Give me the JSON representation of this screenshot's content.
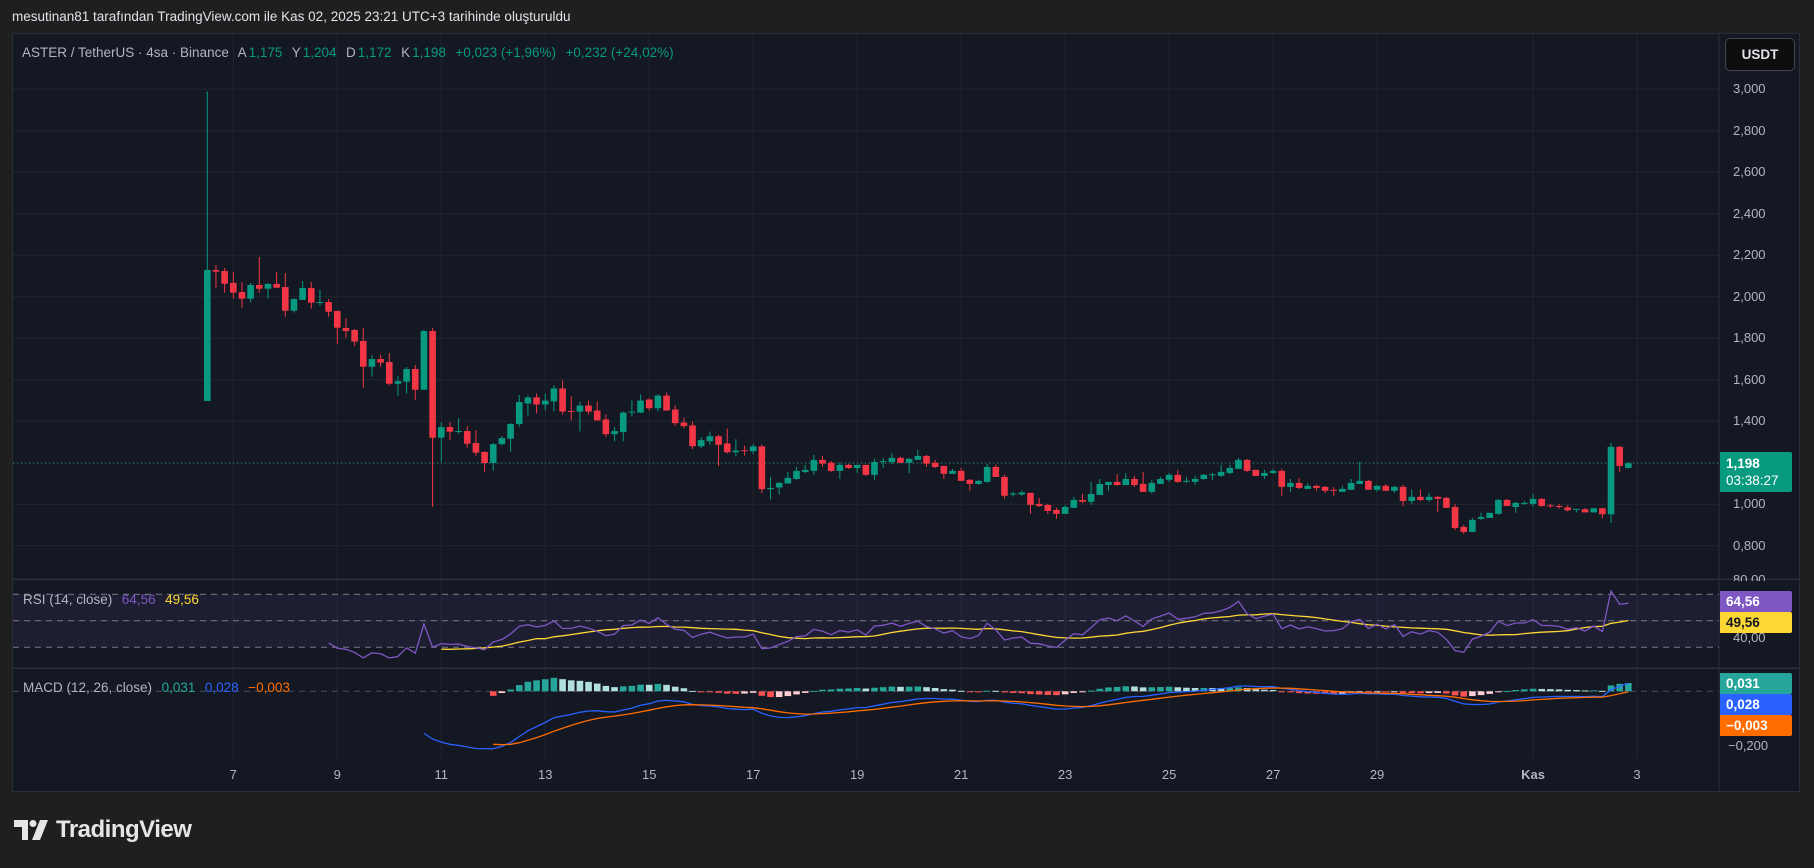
{
  "snapshot_caption": "mesutinan81 tarafından TradingView.com ile Kas 02, 2025 23:21 UTC+3 tarihinde oluşturuldu",
  "header": {
    "symbol": "ASTER / TetherUS · 4sa · Binance",
    "open_label": "A",
    "open": "1,175",
    "high_label": "Y",
    "high": "1,204",
    "low_label": "D",
    "low": "1,172",
    "close_label": "K",
    "close": "1,198",
    "change": "+0,023 (+1,96%)",
    "change_total": "+0,232 (+24,02%)"
  },
  "currency_button": "USDT",
  "price_axis": {
    "labels": [
      "3,000",
      "2,800",
      "2,600",
      "2,400",
      "2,200",
      "2,000",
      "1,800",
      "1,600",
      "1,400",
      "1,000",
      "0,800"
    ],
    "current_price": "1,198",
    "countdown": "03:38:27"
  },
  "rsi": {
    "title": "RSI (14, close)",
    "value": "64,56",
    "ma_value": "49,56",
    "axis_labels": [
      "80,00",
      "40,00"
    ]
  },
  "macd": {
    "title": "MACD (12, 26, close)",
    "histogram": "0,031",
    "macd": "0,028",
    "signal": "−0,003",
    "axis_labels": [
      "−0,200"
    ]
  },
  "time_axis": {
    "labels": [
      "7",
      "9",
      "11",
      "13",
      "15",
      "17",
      "19",
      "21",
      "23",
      "25",
      "27",
      "29",
      "Kas",
      "3"
    ]
  },
  "branding": {
    "logo_text": "TradingView"
  },
  "colors": {
    "up": "#089981",
    "down": "#f23645",
    "rsi": "#7e57c2",
    "rsi_ma": "#fdd835",
    "macd": "#2962ff",
    "signal": "#ff6d00",
    "hist_up": "#26a69a",
    "hist_down": "#ff5252"
  },
  "chart_data": {
    "type": "candlestick",
    "interval": "4sa",
    "ylim": [
      0.8,
      3.0
    ],
    "ohlc_columns": [
      "open",
      "high",
      "low",
      "close"
    ],
    "ohlc_scale_note": "values in thousandths of USDT",
    "candles": [
      [
        1498,
        2990,
        1498,
        2129
      ],
      [
        2129,
        2153,
        2044,
        2121
      ],
      [
        2124,
        2139,
        2020,
        2063
      ],
      [
        2067,
        2120,
        1991,
        2020
      ],
      [
        2023,
        2071,
        1948,
        1991
      ],
      [
        1991,
        2067,
        1972,
        2057
      ],
      [
        2057,
        2192,
        2020,
        2039
      ],
      [
        2039,
        2067,
        1991,
        2062
      ],
      [
        2062,
        2120,
        2044,
        2044
      ],
      [
        2047,
        2115,
        1904,
        1933
      ],
      [
        1933,
        1994,
        1924,
        1989
      ],
      [
        1985,
        2076,
        1985,
        2042
      ],
      [
        2042,
        2071,
        1943,
        1972
      ],
      [
        1972,
        2033,
        1957,
        1975
      ],
      [
        1975,
        1990,
        1904,
        1928
      ],
      [
        1932,
        1932,
        1774,
        1851
      ],
      [
        1850,
        1898,
        1803,
        1835
      ],
      [
        1840,
        1845,
        1763,
        1784
      ],
      [
        1787,
        1850,
        1562,
        1663
      ],
      [
        1663,
        1720,
        1615,
        1700
      ],
      [
        1700,
        1720,
        1663,
        1683
      ],
      [
        1686,
        1729,
        1572,
        1581
      ],
      [
        1581,
        1618,
        1523,
        1594
      ],
      [
        1591,
        1662,
        1533,
        1652
      ],
      [
        1652,
        1671,
        1504,
        1552
      ],
      [
        1552,
        1840,
        1552,
        1835
      ],
      [
        1835,
        1850,
        988,
        1321
      ],
      [
        1321,
        1396,
        1205,
        1372
      ],
      [
        1372,
        1396,
        1311,
        1350
      ],
      [
        1350,
        1416,
        1340,
        1353
      ],
      [
        1353,
        1377,
        1273,
        1292
      ],
      [
        1295,
        1358,
        1234,
        1249
      ],
      [
        1252,
        1257,
        1157,
        1199
      ],
      [
        1199,
        1295,
        1162,
        1290
      ],
      [
        1290,
        1329,
        1284,
        1319
      ],
      [
        1316,
        1392,
        1253,
        1387
      ],
      [
        1387,
        1527,
        1374,
        1493
      ],
      [
        1486,
        1524,
        1428,
        1515
      ],
      [
        1515,
        1534,
        1438,
        1481
      ],
      [
        1481,
        1534,
        1452,
        1500
      ],
      [
        1496,
        1573,
        1448,
        1558
      ],
      [
        1558,
        1597,
        1433,
        1447
      ],
      [
        1450,
        1520,
        1404,
        1448
      ],
      [
        1447,
        1496,
        1351,
        1476
      ],
      [
        1476,
        1500,
        1433,
        1447
      ],
      [
        1452,
        1496,
        1404,
        1404
      ],
      [
        1409,
        1433,
        1324,
        1338
      ],
      [
        1338,
        1372,
        1304,
        1353
      ],
      [
        1348,
        1447,
        1304,
        1442
      ],
      [
        1445,
        1500,
        1423,
        1447
      ],
      [
        1442,
        1529,
        1439,
        1500
      ],
      [
        1505,
        1510,
        1452,
        1463
      ],
      [
        1463,
        1529,
        1447,
        1524
      ],
      [
        1524,
        1539,
        1452,
        1452
      ],
      [
        1457,
        1476,
        1377,
        1391
      ],
      [
        1394,
        1418,
        1367,
        1377
      ],
      [
        1380,
        1399,
        1266,
        1280
      ],
      [
        1280,
        1324,
        1270,
        1309
      ],
      [
        1304,
        1351,
        1287,
        1328
      ],
      [
        1328,
        1336,
        1184,
        1287
      ],
      [
        1293,
        1365,
        1245,
        1251
      ],
      [
        1251,
        1314,
        1232,
        1259
      ],
      [
        1261,
        1283,
        1235,
        1259
      ],
      [
        1256,
        1290,
        1243,
        1279
      ],
      [
        1279,
        1288,
        1054,
        1073
      ],
      [
        1073,
        1132,
        1023,
        1079
      ],
      [
        1081,
        1108,
        1047,
        1103
      ],
      [
        1100,
        1156,
        1100,
        1127
      ],
      [
        1122,
        1180,
        1118,
        1161
      ],
      [
        1156,
        1190,
        1151,
        1166
      ],
      [
        1161,
        1238,
        1142,
        1214
      ],
      [
        1214,
        1233,
        1180,
        1196
      ],
      [
        1200,
        1209,
        1156,
        1161
      ],
      [
        1161,
        1200,
        1122,
        1190
      ],
      [
        1190,
        1195,
        1171,
        1175
      ],
      [
        1175,
        1190,
        1151,
        1190
      ],
      [
        1190,
        1190,
        1137,
        1142
      ],
      [
        1142,
        1219,
        1118,
        1204
      ],
      [
        1206,
        1224,
        1175,
        1209
      ],
      [
        1204,
        1248,
        1195,
        1224
      ],
      [
        1224,
        1229,
        1200,
        1200
      ],
      [
        1200,
        1224,
        1151,
        1219
      ],
      [
        1214,
        1262,
        1214,
        1233
      ],
      [
        1233,
        1238,
        1180,
        1196
      ],
      [
        1200,
        1214,
        1175,
        1180
      ],
      [
        1185,
        1185,
        1122,
        1147
      ],
      [
        1147,
        1171,
        1147,
        1161
      ],
      [
        1161,
        1175,
        1113,
        1113
      ],
      [
        1118,
        1122,
        1065,
        1098
      ],
      [
        1098,
        1118,
        1094,
        1113
      ],
      [
        1108,
        1195,
        1103,
        1180
      ],
      [
        1180,
        1190,
        1132,
        1132
      ],
      [
        1132,
        1142,
        1027,
        1041
      ],
      [
        1047,
        1061,
        1037,
        1052
      ],
      [
        1047,
        1066,
        1042,
        1057
      ],
      [
        1055,
        1055,
        954,
        997
      ],
      [
        1002,
        1031,
        987,
        992
      ],
      [
        997,
        1002,
        954,
        968
      ],
      [
        973,
        983,
        930,
        954
      ],
      [
        954,
        997,
        954,
        987
      ],
      [
        983,
        1036,
        983,
        1021
      ],
      [
        1021,
        1050,
        1007,
        1012
      ],
      [
        1012,
        1108,
        997,
        1050
      ],
      [
        1045,
        1122,
        1045,
        1098
      ],
      [
        1093,
        1108,
        1065,
        1108
      ],
      [
        1108,
        1146,
        1088,
        1093
      ],
      [
        1093,
        1151,
        1093,
        1122
      ],
      [
        1122,
        1137,
        1084,
        1093
      ],
      [
        1098,
        1156,
        1060,
        1060
      ],
      [
        1060,
        1118,
        1052,
        1103
      ],
      [
        1098,
        1132,
        1098,
        1122
      ],
      [
        1118,
        1151,
        1108,
        1142
      ],
      [
        1142,
        1166,
        1103,
        1108
      ],
      [
        1108,
        1132,
        1103,
        1113
      ],
      [
        1108,
        1137,
        1093,
        1122
      ],
      [
        1122,
        1146,
        1118,
        1142
      ],
      [
        1142,
        1151,
        1118,
        1145
      ],
      [
        1137,
        1190,
        1132,
        1156
      ],
      [
        1151,
        1190,
        1146,
        1175
      ],
      [
        1171,
        1224,
        1171,
        1214
      ],
      [
        1214,
        1219,
        1156,
        1161
      ],
      [
        1166,
        1166,
        1137,
        1137
      ],
      [
        1137,
        1166,
        1122,
        1151
      ],
      [
        1151,
        1171,
        1146,
        1161
      ],
      [
        1161,
        1171,
        1041,
        1084
      ],
      [
        1084,
        1122,
        1060,
        1103
      ],
      [
        1103,
        1127,
        1074,
        1079
      ],
      [
        1074,
        1103,
        1074,
        1089
      ],
      [
        1089,
        1094,
        1065,
        1079
      ],
      [
        1084,
        1089,
        1055,
        1065
      ],
      [
        1070,
        1084,
        1041,
        1067
      ],
      [
        1060,
        1089,
        1060,
        1074
      ],
      [
        1070,
        1122,
        1070,
        1103
      ],
      [
        1098,
        1204,
        1098,
        1113
      ],
      [
        1113,
        1118,
        1070,
        1070
      ],
      [
        1070,
        1094,
        1060,
        1089
      ],
      [
        1089,
        1098,
        1065,
        1065
      ],
      [
        1065,
        1089,
        1055,
        1084
      ],
      [
        1084,
        1094,
        992,
        1016
      ],
      [
        1016,
        1070,
        1002,
        1036
      ],
      [
        1036,
        1070,
        1016,
        1021
      ],
      [
        1021,
        1055,
        1012,
        1036
      ],
      [
        1036,
        1041,
        963,
        1026
      ],
      [
        1031,
        1036,
        983,
        983
      ],
      [
        987,
        1002,
        876,
        886
      ],
      [
        891,
        901,
        857,
        867
      ],
      [
        867,
        934,
        867,
        925
      ],
      [
        930,
        959,
        925,
        939
      ],
      [
        934,
        959,
        934,
        959
      ],
      [
        954,
        1026,
        949,
        1021
      ],
      [
        1021,
        1026,
        992,
        992
      ],
      [
        987,
        1012,
        959,
        1007
      ],
      [
        1002,
        1016,
        997,
        1007
      ],
      [
        1002,
        1050,
        988,
        1026
      ],
      [
        1026,
        1031,
        988,
        992
      ],
      [
        995,
        1002,
        983,
        992
      ],
      [
        992,
        1002,
        978,
        987
      ],
      [
        985,
        995,
        966,
        971
      ],
      [
        975,
        978,
        961,
        978
      ],
      [
        976,
        981,
        961,
        961
      ],
      [
        961,
        981,
        961,
        981
      ],
      [
        981,
        981,
        932,
        952
      ],
      [
        952,
        1296,
        910,
        1277
      ],
      [
        1277,
        1282,
        1156,
        1185
      ],
      [
        1175,
        1204,
        1172,
        1198
      ]
    ],
    "time_ticks": [
      {
        "label": "7",
        "candle": 3
      },
      {
        "label": "9",
        "candle": 15
      },
      {
        "label": "11",
        "candle": 27
      },
      {
        "label": "13",
        "candle": 39
      },
      {
        "label": "15",
        "candle": 51
      },
      {
        "label": "17",
        "candle": 63
      },
      {
        "label": "19",
        "candle": 75
      },
      {
        "label": "21",
        "candle": 87
      },
      {
        "label": "23",
        "candle": 99
      },
      {
        "label": "25",
        "candle": 111
      },
      {
        "label": "27",
        "candle": 123
      },
      {
        "label": "29",
        "candle": 135
      },
      {
        "label": "Kas",
        "candle": 153
      },
      {
        "label": "3",
        "candle": 165
      }
    ],
    "price_ticks": [
      3000,
      2800,
      2600,
      2400,
      2200,
      2000,
      1800,
      1600,
      1400,
      1200,
      1000,
      800
    ],
    "rsi_levels": [
      70,
      50,
      30
    ],
    "grid": true
  }
}
